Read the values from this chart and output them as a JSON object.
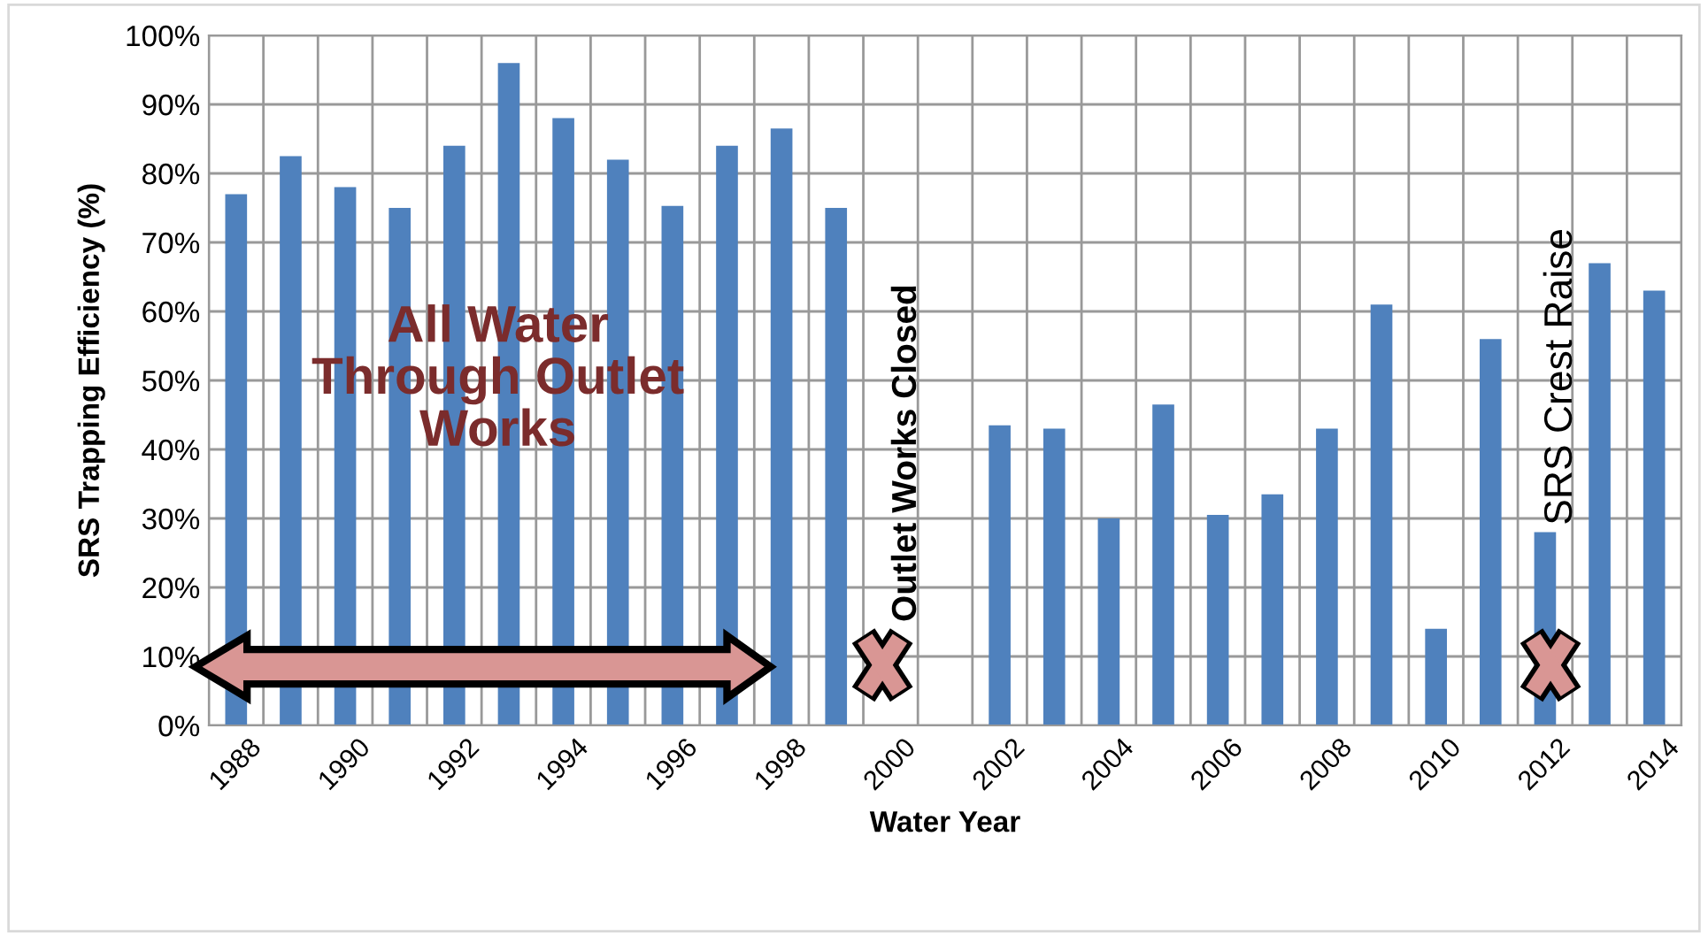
{
  "chart_data": {
    "type": "bar",
    "xlabel": "Water Year",
    "ylabel": "SRS Trapping Efficiency (%)",
    "categories": [
      "1988",
      null,
      "1990",
      null,
      "1992",
      null,
      "1994",
      null,
      "1996",
      null,
      "1998",
      null,
      "2000",
      null,
      "2002",
      null,
      "2004",
      null,
      "2006",
      null,
      "2008",
      null,
      "2010",
      null,
      "2012",
      null,
      "2014"
    ],
    "values": [
      77,
      82.5,
      78,
      75,
      84,
      96,
      88,
      82,
      75.3,
      84,
      86.5,
      75,
      null,
      null,
      43.5,
      43,
      30,
      46.5,
      30.5,
      33.5,
      43,
      61,
      14,
      56,
      28,
      67,
      63
    ],
    "color": "#4f81bd",
    "ylim": [
      0,
      100
    ],
    "yticks": [
      {
        "value": 0,
        "label": "0%"
      },
      {
        "value": 10,
        "label": "10%"
      },
      {
        "value": 20,
        "label": "20%"
      },
      {
        "value": 30,
        "label": "30%"
      },
      {
        "value": 40,
        "label": "40%"
      },
      {
        "value": 50,
        "label": "50%"
      },
      {
        "value": 60,
        "label": "60%"
      },
      {
        "value": 70,
        "label": "70%"
      },
      {
        "value": 80,
        "label": "80%"
      },
      {
        "value": 90,
        "label": "90%"
      },
      {
        "value": 100,
        "label": "100%"
      }
    ],
    "grid": true,
    "annotations": [
      "All Water\nThrough Outlet\nWorks",
      "Outlet Works Closed",
      "SRS Crest Raise"
    ]
  }
}
